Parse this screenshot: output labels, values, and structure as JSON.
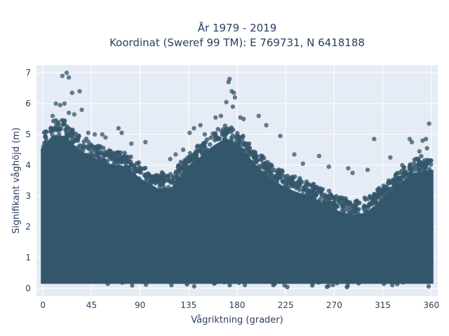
{
  "chart_data": {
    "type": "scatter",
    "title_line1": "År 1979 - 2019",
    "title_line2": "Koordinat (Sweref 99 TM): E 769731, N 6418188",
    "xlabel": "Vågriktning (grader)",
    "ylabel": "Signifikant våghöjd (m)",
    "xlim": [
      -6,
      366
    ],
    "ylim": [
      -0.25,
      7.25
    ],
    "xticks": [
      0,
      45,
      90,
      135,
      180,
      225,
      270,
      315,
      360
    ],
    "yticks": [
      0,
      1,
      2,
      3,
      4,
      5,
      6,
      7
    ],
    "grid": true,
    "marker_color": "#34566b",
    "plot_background": "#e5ecf6",
    "envelope": {
      "x": [
        0,
        10,
        20,
        30,
        45,
        60,
        75,
        90,
        105,
        120,
        135,
        150,
        160,
        170,
        180,
        195,
        210,
        225,
        240,
        255,
        270,
        285,
        300,
        315,
        330,
        345,
        360
      ],
      "upper_hs": [
        4.9,
        5.3,
        5.3,
        4.9,
        4.6,
        4.4,
        4.3,
        3.9,
        3.6,
        3.6,
        4.3,
        4.7,
        5.0,
        5.2,
        5.0,
        4.4,
        3.9,
        3.6,
        3.4,
        3.2,
        2.9,
        2.7,
        2.8,
        3.2,
        3.7,
        4.1,
        4.2
      ]
    },
    "outliers": [
      {
        "x": 18,
        "y": 6.9
      },
      {
        "x": 22,
        "y": 7.0
      },
      {
        "x": 24,
        "y": 6.85
      },
      {
        "x": 12,
        "y": 6.0
      },
      {
        "x": 16,
        "y": 5.95
      },
      {
        "x": 20,
        "y": 6.0
      },
      {
        "x": 27,
        "y": 6.35
      },
      {
        "x": 34,
        "y": 6.4
      },
      {
        "x": 36,
        "y": 5.8
      },
      {
        "x": 24,
        "y": 5.7
      },
      {
        "x": 9,
        "y": 5.6
      },
      {
        "x": 29,
        "y": 5.65
      },
      {
        "x": 14,
        "y": 5.4
      },
      {
        "x": 42,
        "y": 5.05
      },
      {
        "x": 48,
        "y": 5.0
      },
      {
        "x": 55,
        "y": 5.0
      },
      {
        "x": 58,
        "y": 4.9
      },
      {
        "x": 70,
        "y": 5.2
      },
      {
        "x": 73,
        "y": 5.05
      },
      {
        "x": 82,
        "y": 4.7
      },
      {
        "x": 95,
        "y": 4.75
      },
      {
        "x": 118,
        "y": 4.2
      },
      {
        "x": 123,
        "y": 4.35
      },
      {
        "x": 130,
        "y": 4.5
      },
      {
        "x": 136,
        "y": 5.05
      },
      {
        "x": 140,
        "y": 5.2
      },
      {
        "x": 146,
        "y": 5.3
      },
      {
        "x": 150,
        "y": 5.0
      },
      {
        "x": 160,
        "y": 5.55
      },
      {
        "x": 165,
        "y": 5.6
      },
      {
        "x": 170,
        "y": 6.05
      },
      {
        "x": 172,
        "y": 6.7
      },
      {
        "x": 173,
        "y": 6.8
      },
      {
        "x": 175,
        "y": 6.4
      },
      {
        "x": 177,
        "y": 6.35
      },
      {
        "x": 178,
        "y": 6.2
      },
      {
        "x": 176,
        "y": 5.9
      },
      {
        "x": 183,
        "y": 5.55
      },
      {
        "x": 186,
        "y": 5.5
      },
      {
        "x": 200,
        "y": 5.6
      },
      {
        "x": 207,
        "y": 5.3
      },
      {
        "x": 220,
        "y": 4.95
      },
      {
        "x": 233,
        "y": 4.35
      },
      {
        "x": 241,
        "y": 4.05
      },
      {
        "x": 256,
        "y": 4.3
      },
      {
        "x": 265,
        "y": 3.95
      },
      {
        "x": 283,
        "y": 3.9
      },
      {
        "x": 287,
        "y": 3.75
      },
      {
        "x": 301,
        "y": 3.85
      },
      {
        "x": 307,
        "y": 4.85
      },
      {
        "x": 322,
        "y": 4.25
      },
      {
        "x": 333,
        "y": 4.0
      },
      {
        "x": 340,
        "y": 4.85
      },
      {
        "x": 342,
        "y": 4.75
      },
      {
        "x": 349,
        "y": 4.45
      },
      {
        "x": 352,
        "y": 4.8
      },
      {
        "x": 355,
        "y": 4.85
      },
      {
        "x": 358,
        "y": 5.35
      },
      {
        "x": 356,
        "y": 4.55
      }
    ]
  }
}
